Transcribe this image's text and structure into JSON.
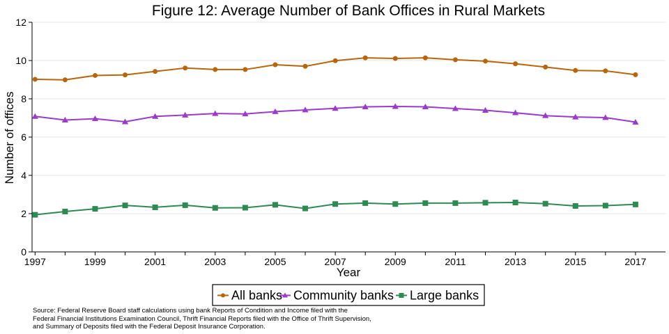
{
  "chart_data": {
    "type": "line",
    "title": "Figure 12: Average Number of Bank Offices in Rural Markets",
    "xlabel": "Year",
    "ylabel": "Number of offices",
    "xlim": [
      1996.9,
      2018
    ],
    "ylim": [
      0,
      12
    ],
    "x_ticks": [
      1997,
      1999,
      2001,
      2003,
      2005,
      2007,
      2009,
      2011,
      2013,
      2015,
      2017
    ],
    "y_ticks": [
      0,
      2,
      4,
      6,
      8,
      10,
      12
    ],
    "grid": "horizontal",
    "legend_position": "bottom",
    "x": [
      1997,
      1998,
      1999,
      2000,
      2001,
      2002,
      2003,
      2004,
      2005,
      2006,
      2007,
      2008,
      2009,
      2010,
      2011,
      2012,
      2013,
      2014,
      2015,
      2016,
      2017
    ],
    "series": [
      {
        "name": "All banks",
        "color": "#b8650c",
        "marker": "circle",
        "values": [
          9.02,
          8.99,
          9.22,
          9.25,
          9.43,
          9.61,
          9.53,
          9.53,
          9.78,
          9.7,
          9.99,
          10.14,
          10.11,
          10.14,
          10.04,
          9.97,
          9.83,
          9.66,
          9.48,
          9.46,
          9.26
        ]
      },
      {
        "name": "Community banks",
        "color": "#9a3bcc",
        "marker": "triangle",
        "values": [
          7.08,
          6.89,
          6.96,
          6.8,
          7.08,
          7.15,
          7.23,
          7.21,
          7.33,
          7.42,
          7.5,
          7.58,
          7.6,
          7.58,
          7.49,
          7.4,
          7.27,
          7.12,
          7.05,
          7.02,
          6.78
        ]
      },
      {
        "name": "Large banks",
        "color": "#2c8a52",
        "marker": "square",
        "values": [
          1.94,
          2.11,
          2.25,
          2.43,
          2.33,
          2.44,
          2.3,
          2.31,
          2.46,
          2.27,
          2.5,
          2.55,
          2.5,
          2.55,
          2.55,
          2.57,
          2.58,
          2.52,
          2.4,
          2.42,
          2.48
        ]
      }
    ]
  },
  "source_note": "Source: Federal Reserve Board staff calculations using bank Reports of Condition and Income filed with the\nFederal Financial Institutions Examination Council, Thrift Financial Reports filed with the Office of Thrift Supervision,\nand Summary of Deposits filed with the Federal Deposit Insurance Corporation."
}
